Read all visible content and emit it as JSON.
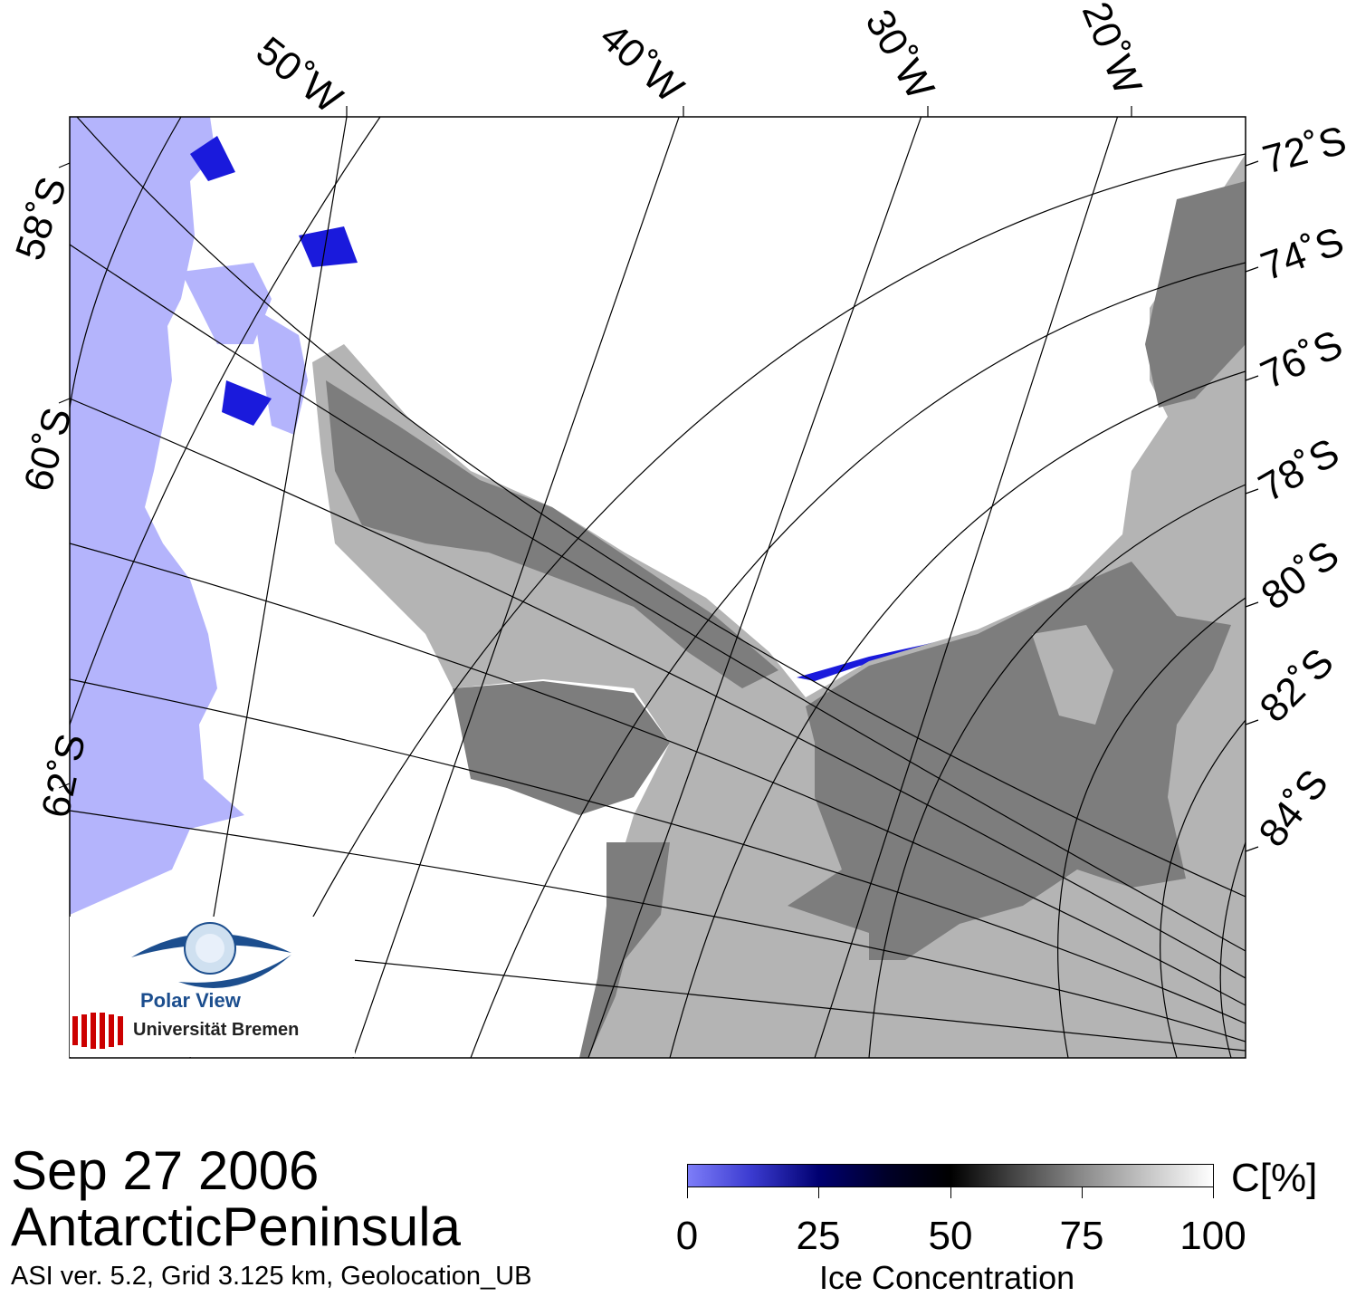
{
  "map": {
    "longitude_labels": [
      "50˚W",
      "40˚W",
      "30˚W",
      "20˚W"
    ],
    "latitude_labels_left": [
      "58˚S",
      "60˚S",
      "62˚S"
    ],
    "latitude_labels_right": [
      "72˚S",
      "74˚S",
      "76˚S",
      "78˚S",
      "80˚S",
      "82˚S",
      "84˚S"
    ],
    "colors": {
      "ocean": "#b4b4fc",
      "land": "#b4b4b4",
      "ice_shelf": "#7d7d7d",
      "sea_ice": "#ffffff",
      "low_concentration": "#1a1adc"
    }
  },
  "footer": {
    "date": "Sep 27 2006",
    "region": "AntarcticPeninsula",
    "meta": "ASI ver. 5.2,  Grid 3.125 km, Geolocation_UB"
  },
  "colorbar": {
    "ticks": [
      "0",
      "25",
      "50",
      "75",
      "100"
    ],
    "unit": "C[%]",
    "title": "Ice Concentration"
  },
  "logo": {
    "polar_view": "Polar View",
    "university": "Universität Bremen"
  }
}
